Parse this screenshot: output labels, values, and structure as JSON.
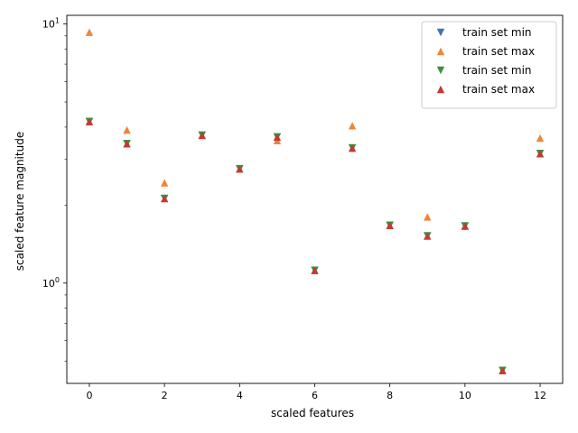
{
  "chart_data": {
    "type": "scatter",
    "title": "",
    "xlabel": "scaled features",
    "ylabel": "scaled feature magnitude",
    "xscale": "linear",
    "yscale": "log",
    "xlim": [
      -0.6,
      12.6
    ],
    "ylim": [
      0.41,
      10.8
    ],
    "xticks": [
      0,
      2,
      4,
      6,
      8,
      10,
      12
    ],
    "xtick_labels": [
      "0",
      "2",
      "4",
      "6",
      "8",
      "10",
      "12"
    ],
    "yticks_major": [
      1,
      10
    ],
    "ytick_labels": [
      "10^0",
      "10^1"
    ],
    "yticks_minor": [
      0.5,
      0.6,
      0.7,
      0.8,
      0.9,
      2,
      3,
      4,
      5,
      6,
      7,
      8,
      9
    ],
    "grid": false,
    "legend_position": "top-right",
    "x": [
      0,
      1,
      2,
      3,
      4,
      5,
      6,
      7,
      8,
      9,
      10,
      11,
      12
    ],
    "series": [
      {
        "name": "train set min",
        "marker": "triangle-down",
        "color": "#3d76af",
        "values": [
          4.2,
          3.45,
          2.12,
          3.72,
          2.76,
          3.66,
          1.12,
          3.32,
          1.67,
          1.52,
          1.66,
          0.46,
          3.16
        ]
      },
      {
        "name": "train set max",
        "marker": "triangle-up",
        "color": "#ef8636",
        "values": [
          9.3,
          3.9,
          2.44,
          3.72,
          2.76,
          3.55,
          1.12,
          4.05,
          1.67,
          1.8,
          1.66,
          0.46,
          3.63
        ]
      },
      {
        "name": "train set min",
        "marker": "triangle-down",
        "color": "#3b923a",
        "values": [
          4.2,
          3.45,
          2.12,
          3.72,
          2.76,
          3.66,
          1.12,
          3.32,
          1.67,
          1.52,
          1.66,
          0.46,
          3.16
        ]
      },
      {
        "name": "train set max",
        "marker": "triangle-up",
        "color": "#c53932",
        "values": [
          4.2,
          3.45,
          2.12,
          3.72,
          2.76,
          3.66,
          1.12,
          3.32,
          1.67,
          1.52,
          1.66,
          0.46,
          3.16
        ]
      }
    ]
  }
}
